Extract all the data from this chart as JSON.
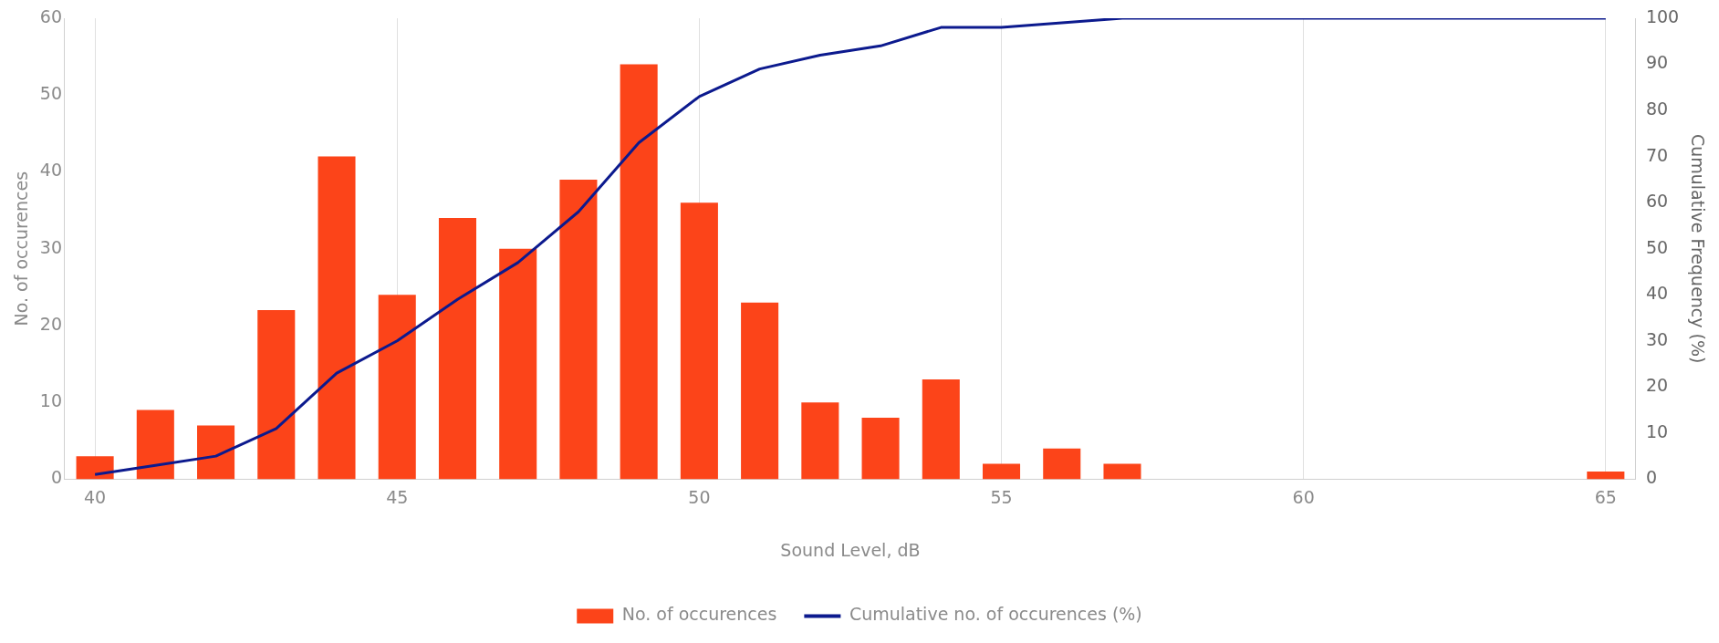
{
  "chart_data": {
    "type": "bar",
    "x": [
      40,
      41,
      42,
      43,
      44,
      45,
      46,
      47,
      48,
      49,
      50,
      51,
      52,
      53,
      54,
      55,
      56,
      57,
      58,
      59,
      60,
      61,
      62,
      63,
      64,
      65
    ],
    "series": [
      {
        "name": "No. of occurences",
        "color": "#fc4419",
        "values": [
          3,
          9,
          7,
          22,
          42,
          24,
          34,
          30,
          39,
          54,
          36,
          23,
          10,
          8,
          13,
          2,
          4,
          2,
          0,
          0,
          0,
          0,
          0,
          0,
          0,
          1
        ]
      },
      {
        "name": "Cumulative no. of occurences (%)",
        "type": "line",
        "axis": "y2",
        "color": "#0c1a8e",
        "values": [
          1,
          3,
          5,
          11,
          23,
          30,
          39,
          47,
          58,
          73,
          83,
          89,
          92,
          94,
          98,
          98,
          99,
          100,
          100,
          100,
          100,
          100,
          100,
          100,
          100,
          100
        ]
      }
    ],
    "xlabel": "Sound Level, dB",
    "ylabel": "No. of occurences",
    "y2label": "Cumulative Frequency (%)",
    "xlim": [
      39.5,
      65.5
    ],
    "xticks": [
      40,
      45,
      50,
      55,
      60,
      65
    ],
    "ylim": [
      0,
      60
    ],
    "yticks": [
      0,
      10,
      20,
      30,
      40,
      50,
      60
    ],
    "y2lim": [
      0,
      100
    ],
    "y2ticks": [
      0,
      10,
      20,
      30,
      40,
      50,
      60,
      70,
      80,
      90,
      100
    ],
    "grid": "x",
    "legend": "bottom",
    "marker": "none"
  }
}
